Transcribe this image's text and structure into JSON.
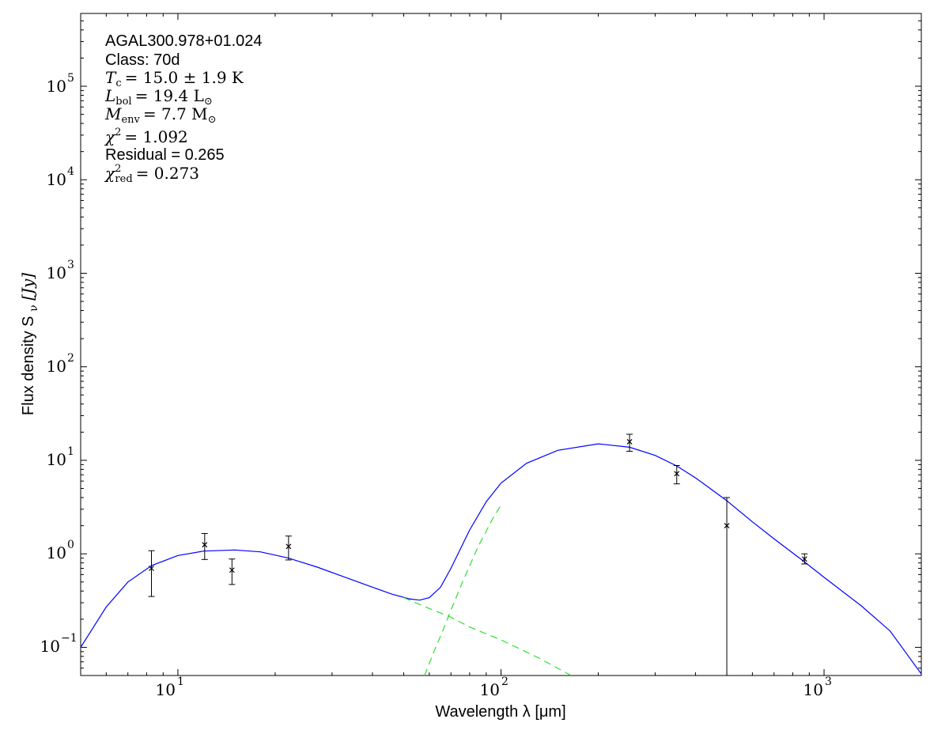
{
  "chart_data": {
    "type": "line",
    "xscale": "log",
    "yscale": "log",
    "xlim": [
      5,
      2000
    ],
    "ylim": [
      0.05,
      600000
    ],
    "xlabel": "Wavelength λ [μm]",
    "ylabel": "Flux density S",
    "ylabel_sub": "ν",
    "ylabel_unit": "[Jy]",
    "x_ticks": [
      {
        "value": 10,
        "base": "10",
        "exp": "1"
      },
      {
        "value": 100,
        "base": "10",
        "exp": "2"
      },
      {
        "value": 1000,
        "base": "10",
        "exp": "3"
      }
    ],
    "y_ticks": [
      {
        "value": 0.1,
        "base": "10",
        "exp": "−1"
      },
      {
        "value": 1,
        "base": "10",
        "exp": "0"
      },
      {
        "value": 10,
        "base": "10",
        "exp": "1"
      },
      {
        "value": 100,
        "base": "10",
        "exp": "2"
      },
      {
        "value": 1000,
        "base": "10",
        "exp": "3"
      },
      {
        "value": 10000,
        "base": "10",
        "exp": "4"
      },
      {
        "value": 100000,
        "base": "10",
        "exp": "5"
      }
    ],
    "annotations": {
      "source": "AGAL300.978+01.024",
      "class_label": "Class: 70d",
      "tc_symbol": "T",
      "tc_sub": "c",
      "tc_value": "= 15.0 ± 1.9 K",
      "lbol_symbol": "L",
      "lbol_sub": "bol",
      "lbol_value": "= 19.4 L",
      "lbol_unit_sub": "⊙",
      "menv_symbol": "M",
      "menv_sub": "env",
      "menv_value": "= 7.7 M",
      "menv_unit_sub": "⊙",
      "chi2_symbol": "χ",
      "chi2_sup": "2",
      "chi2_value": "= 1.092",
      "residual": "Residual = 0.265",
      "chired_symbol": "χ",
      "chired_sup": "2",
      "chired_sub": "red",
      "chired_value": "= 0.273"
    },
    "series": [
      {
        "name": "",
        "kind": "total-fit",
        "color": "#0000ff",
        "style": "solid",
        "x": [
          5,
          6,
          7,
          8.3,
          10,
          12,
          15,
          18,
          22,
          27,
          33,
          40,
          46,
          52,
          56,
          60,
          65,
          70,
          80,
          90,
          100,
          120,
          150,
          200,
          250,
          300,
          350,
          400,
          500,
          600,
          700,
          870,
          1000,
          1300,
          1600,
          2000
        ],
        "y": [
          0.1,
          0.27,
          0.5,
          0.75,
          0.96,
          1.07,
          1.1,
          1.05,
          0.9,
          0.72,
          0.56,
          0.44,
          0.37,
          0.33,
          0.32,
          0.34,
          0.44,
          0.7,
          1.8,
          3.6,
          5.7,
          9.3,
          12.8,
          15.0,
          13.8,
          11.3,
          8.7,
          6.5,
          3.7,
          2.2,
          1.45,
          0.82,
          0.56,
          0.28,
          0.15,
          0.052
        ]
      },
      {
        "name": "",
        "kind": "warm-component",
        "color": "#33dd33",
        "style": "dashed",
        "x": [
          50,
          60,
          70,
          80,
          100,
          130,
          165
        ],
        "y": [
          0.34,
          0.26,
          0.21,
          0.165,
          0.12,
          0.078,
          0.05
        ]
      },
      {
        "name": "",
        "kind": "cold-component",
        "color": "#33dd33",
        "style": "dashed",
        "x": [
          58,
          62,
          66,
          70,
          76,
          85,
          95,
          100
        ],
        "y": [
          0.05,
          0.09,
          0.15,
          0.25,
          0.5,
          1.2,
          2.5,
          3.3
        ]
      }
    ],
    "data_points": [
      {
        "x": 8.28,
        "y": 0.7,
        "yerr_low": 0.35,
        "yerr_high": 1.08
      },
      {
        "x": 12.1,
        "y": 1.25,
        "yerr_low": 0.87,
        "yerr_high": 1.65
      },
      {
        "x": 14.7,
        "y": 0.67,
        "yerr_low": 0.47,
        "yerr_high": 0.88
      },
      {
        "x": 22.0,
        "y": 1.2,
        "yerr_low": 0.86,
        "yerr_high": 1.55
      },
      {
        "x": 250,
        "y": 15.8,
        "yerr_low": 12.5,
        "yerr_high": 19.0
      },
      {
        "x": 350,
        "y": 7.2,
        "yerr_low": 5.6,
        "yerr_high": 8.8
      },
      {
        "x": 500,
        "y": 2.0,
        "yerr_low": 0.03,
        "yerr_high": 4.0
      },
      {
        "x": 870,
        "y": 0.88,
        "yerr_low": 0.78,
        "yerr_high": 1.0
      }
    ],
    "grid": false,
    "legend": "none"
  }
}
